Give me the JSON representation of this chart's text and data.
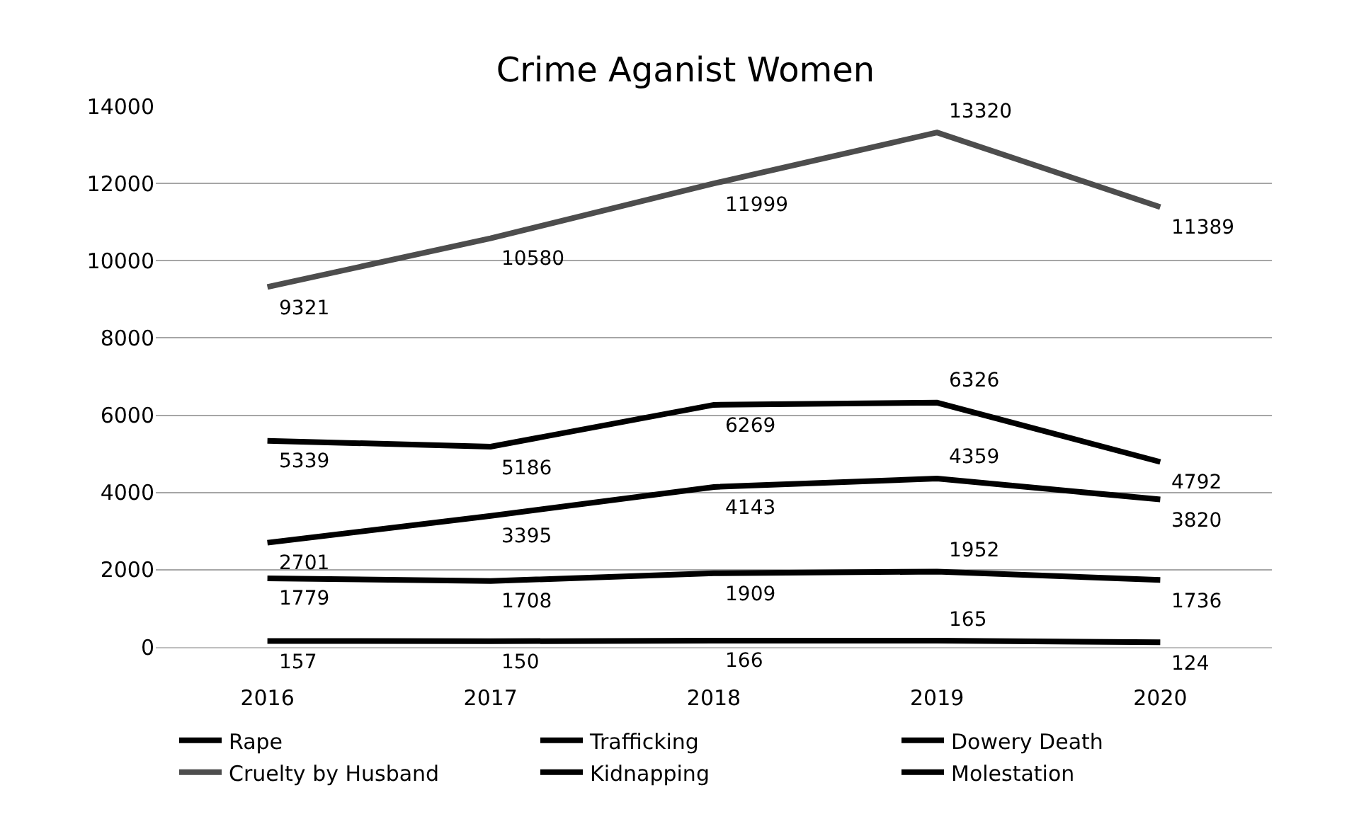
{
  "chart_data": {
    "type": "line",
    "title": "Crime Aganist Women",
    "categories": [
      "2016",
      "2017",
      "2018",
      "2019",
      "2020"
    ],
    "series": [
      {
        "name": "Rape",
        "color": "#000000",
        "values": [
          2701,
          3395,
          4143,
          4359,
          3820
        ]
      },
      {
        "name": "Trafficking",
        "color": "#000000",
        "values": [
          157,
          150,
          166,
          165,
          124
        ]
      },
      {
        "name": "Dowery Death",
        "color": "#000000",
        "values": [
          1779,
          1708,
          1909,
          1952,
          1736
        ]
      },
      {
        "name": "Cruelty by Husband",
        "color": "#4d4d4d",
        "values": [
          9321,
          10580,
          11999,
          13320,
          11389
        ]
      },
      {
        "name": "Kidnapping",
        "color": "#000000",
        "values": [
          5339,
          5186,
          6269,
          6326,
          4792
        ]
      },
      {
        "name": "Molestation",
        "color": "#000000",
        "values": [
          null,
          null,
          null,
          null,
          null
        ]
      }
    ],
    "ylim": [
      0,
      14000
    ],
    "yticks": [
      0,
      2000,
      4000,
      6000,
      8000,
      10000,
      12000,
      14000
    ],
    "grid": "y",
    "legend": "bottom",
    "marker": "none",
    "line_style": "solid",
    "data_labels": true
  }
}
